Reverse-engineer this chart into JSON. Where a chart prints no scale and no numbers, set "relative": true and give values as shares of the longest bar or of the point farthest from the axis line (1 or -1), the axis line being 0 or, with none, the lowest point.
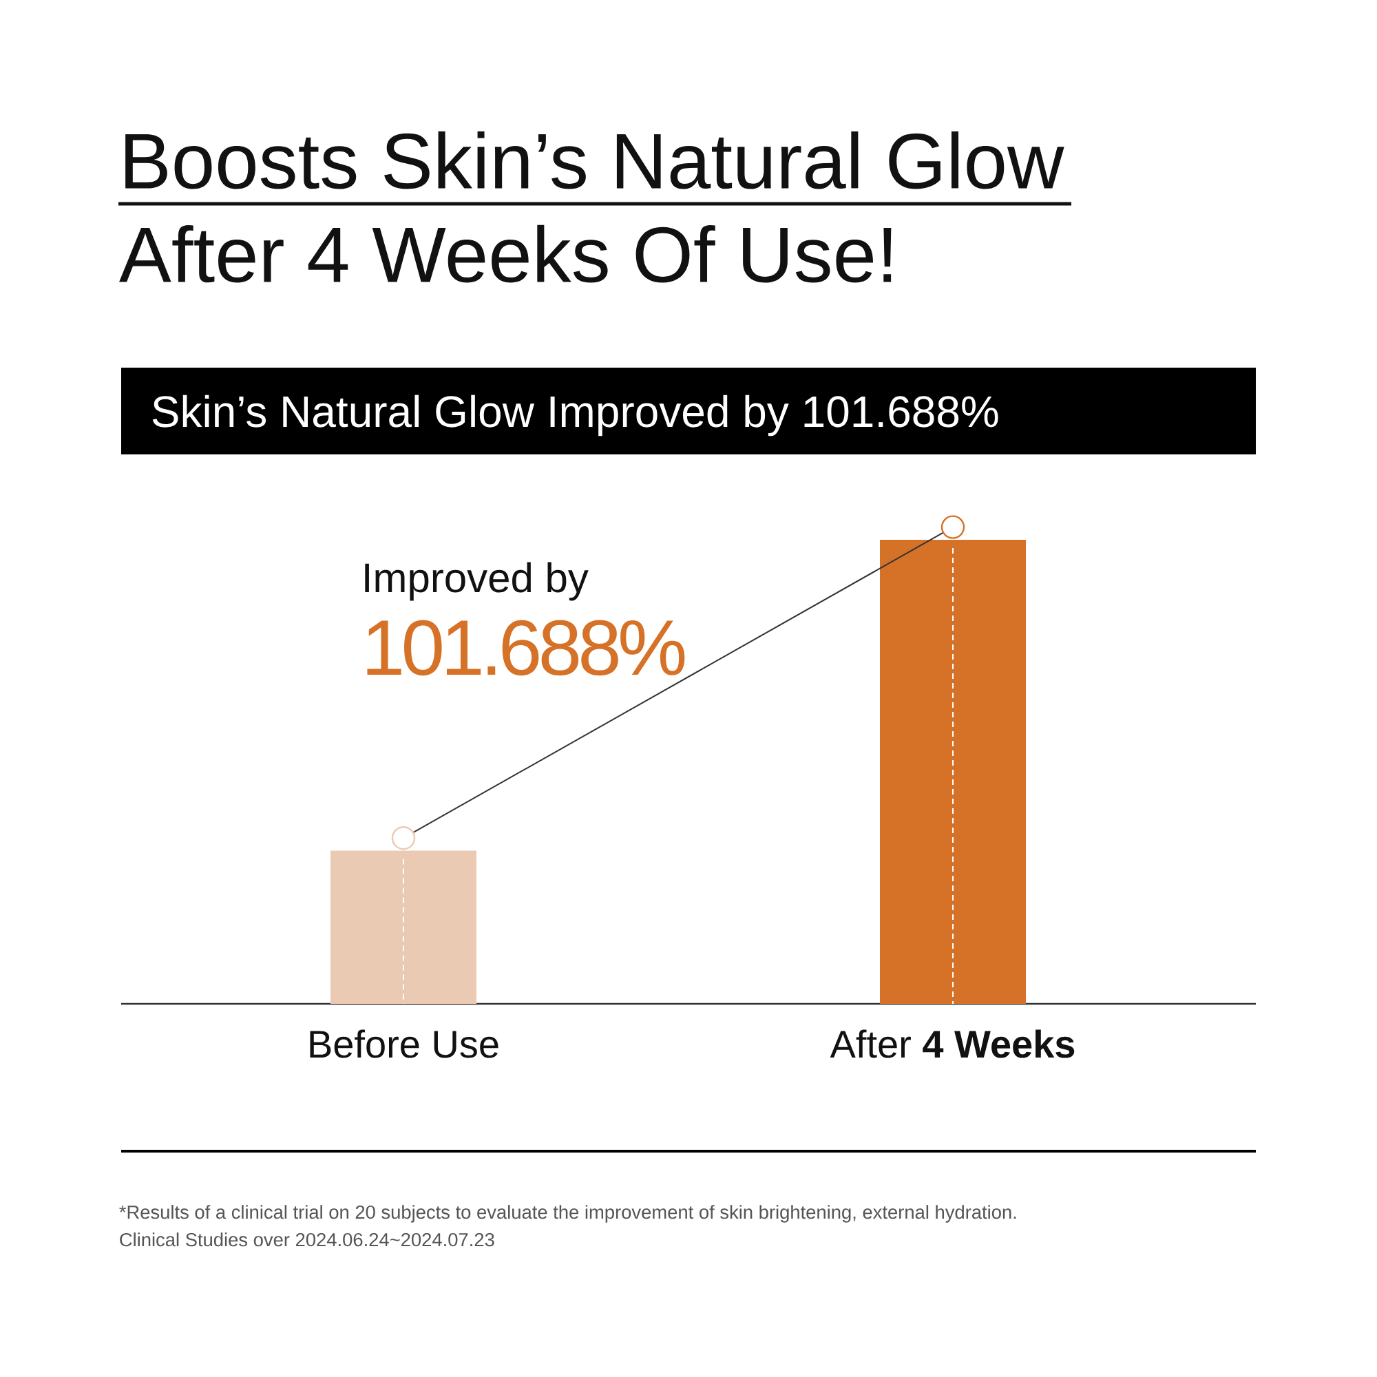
{
  "chart_data": {
    "type": "bar",
    "title": "Boosts Skin’s Natural Glow After 4 Weeks Of Use!",
    "subtitle": "Skin’s Natural Glow Improved by 101.688%",
    "categories": [
      "Before Use",
      "After **4 Weeks**"
    ],
    "values": [
      0.33,
      1
    ],
    "colors": [
      "#ebcab3",
      "#d57228"
    ],
    "relative": true,
    "annotations": [
      "Improved by",
      "101.688%",
      "*Results of a clinical trial on 20 subjects to evaluate the improvement of skin brightening, external hydration.",
      "Clinical Studies over 2024.06.24~2024.07.23"
    ]
  }
}
